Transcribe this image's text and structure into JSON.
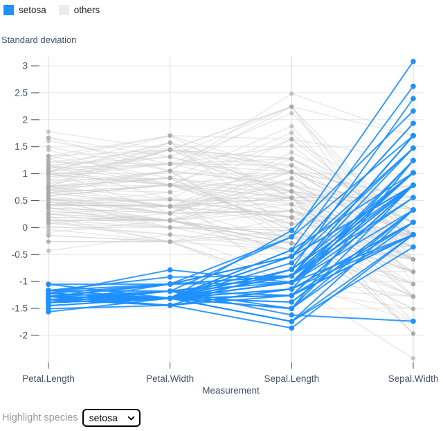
{
  "legend": {
    "items": [
      {
        "label": "setosa",
        "color": "#1e90ff"
      },
      {
        "label": "others",
        "color": "#ececec"
      }
    ]
  },
  "controls": {
    "label": "Highlight species",
    "selected": "setosa"
  },
  "chart_data": {
    "type": "line",
    "subtype": "parallel-coordinates",
    "title": "",
    "ylabel": "Standard deviation",
    "xlabel": "Measurement",
    "x_categories": [
      "Petal.Length",
      "Petal.Width",
      "Sepal.Length",
      "Sepal.Width"
    ],
    "y_ticks": [
      3,
      2.5,
      2,
      1.5,
      1,
      0.5,
      0,
      -0.5,
      -1,
      -1.5,
      -2
    ],
    "ylim": [
      -2.5,
      3.2
    ],
    "grid": true,
    "legend_position": "top-left",
    "highlight": "setosa",
    "standardized_per_column": true,
    "colors": {
      "highlight": "#1e90ff",
      "context_line": "#cccccc",
      "context_dot": "#a6a6a6",
      "grid": "#e7e7e7",
      "axis_rule": "#dadada",
      "axis_text": "#45526b"
    },
    "series": [
      {
        "name": "setosa",
        "role": "highlight",
        "rows": [
          [
            1.4,
            0.2,
            5.1,
            3.5
          ],
          [
            1.4,
            0.2,
            4.9,
            3.0
          ],
          [
            1.3,
            0.2,
            4.7,
            3.2
          ],
          [
            1.5,
            0.2,
            4.6,
            3.1
          ],
          [
            1.4,
            0.2,
            5.0,
            3.6
          ],
          [
            1.7,
            0.4,
            5.4,
            3.9
          ],
          [
            1.4,
            0.3,
            4.6,
            3.4
          ],
          [
            1.5,
            0.2,
            5.0,
            3.4
          ],
          [
            1.4,
            0.2,
            4.4,
            2.9
          ],
          [
            1.5,
            0.1,
            4.9,
            3.1
          ],
          [
            1.5,
            0.2,
            5.4,
            3.7
          ],
          [
            1.6,
            0.2,
            4.8,
            3.4
          ],
          [
            1.4,
            0.1,
            4.8,
            3.0
          ],
          [
            1.1,
            0.1,
            4.3,
            3.0
          ],
          [
            1.2,
            0.2,
            5.8,
            4.0
          ],
          [
            1.5,
            0.4,
            5.7,
            4.4
          ],
          [
            1.3,
            0.4,
            5.4,
            3.9
          ],
          [
            1.4,
            0.3,
            5.1,
            3.5
          ],
          [
            1.7,
            0.3,
            5.7,
            3.8
          ],
          [
            1.5,
            0.3,
            5.1,
            3.8
          ],
          [
            1.7,
            0.2,
            5.4,
            3.4
          ],
          [
            1.5,
            0.4,
            5.1,
            3.7
          ],
          [
            1.0,
            0.2,
            4.6,
            3.6
          ],
          [
            1.7,
            0.5,
            5.1,
            3.3
          ],
          [
            1.9,
            0.2,
            4.8,
            3.4
          ],
          [
            1.6,
            0.2,
            5.0,
            3.0
          ],
          [
            1.6,
            0.4,
            5.0,
            3.4
          ],
          [
            1.5,
            0.2,
            5.2,
            3.5
          ],
          [
            1.4,
            0.2,
            5.2,
            3.4
          ],
          [
            1.6,
            0.2,
            4.7,
            3.2
          ],
          [
            1.6,
            0.2,
            4.8,
            3.1
          ],
          [
            1.5,
            0.4,
            5.4,
            3.4
          ],
          [
            1.5,
            0.1,
            5.2,
            4.1
          ],
          [
            1.4,
            0.2,
            5.5,
            4.2
          ],
          [
            1.5,
            0.2,
            4.9,
            3.1
          ],
          [
            1.2,
            0.2,
            5.0,
            3.2
          ],
          [
            1.3,
            0.2,
            5.5,
            3.5
          ],
          [
            1.4,
            0.1,
            4.9,
            3.6
          ],
          [
            1.3,
            0.2,
            4.4,
            3.0
          ],
          [
            1.5,
            0.2,
            5.1,
            3.4
          ],
          [
            1.3,
            0.3,
            5.0,
            3.5
          ],
          [
            1.3,
            0.3,
            4.5,
            2.3
          ],
          [
            1.3,
            0.2,
            4.4,
            3.2
          ],
          [
            1.6,
            0.6,
            5.0,
            3.5
          ],
          [
            1.9,
            0.4,
            5.1,
            3.8
          ],
          [
            1.4,
            0.3,
            4.8,
            3.0
          ],
          [
            1.6,
            0.2,
            5.1,
            3.8
          ],
          [
            1.4,
            0.2,
            4.6,
            3.2
          ],
          [
            1.5,
            0.2,
            5.3,
            3.7
          ],
          [
            1.4,
            0.2,
            5.0,
            3.3
          ]
        ]
      },
      {
        "name": "others",
        "role": "context",
        "rows": [
          [
            4.7,
            1.4,
            7.0,
            3.2
          ],
          [
            4.5,
            1.5,
            6.4,
            3.2
          ],
          [
            4.9,
            1.5,
            6.9,
            3.1
          ],
          [
            4.0,
            1.3,
            5.5,
            2.3
          ],
          [
            4.6,
            1.5,
            6.5,
            2.8
          ],
          [
            4.5,
            1.3,
            5.7,
            2.8
          ],
          [
            4.7,
            1.6,
            6.3,
            3.3
          ],
          [
            3.3,
            1.0,
            4.9,
            2.4
          ],
          [
            4.6,
            1.3,
            6.6,
            2.9
          ],
          [
            3.9,
            1.4,
            5.2,
            2.7
          ],
          [
            3.5,
            1.0,
            5.0,
            2.0
          ],
          [
            4.2,
            1.5,
            5.9,
            3.0
          ],
          [
            4.0,
            1.0,
            6.0,
            2.2
          ],
          [
            4.7,
            1.4,
            6.1,
            2.9
          ],
          [
            3.6,
            1.3,
            5.6,
            2.9
          ],
          [
            4.4,
            1.4,
            6.7,
            3.1
          ],
          [
            4.5,
            1.5,
            5.6,
            3.0
          ],
          [
            4.1,
            1.0,
            5.8,
            2.7
          ],
          [
            4.5,
            1.5,
            6.2,
            2.2
          ],
          [
            3.9,
            1.1,
            5.6,
            2.5
          ],
          [
            4.8,
            1.8,
            5.9,
            3.2
          ],
          [
            4.0,
            1.3,
            6.1,
            2.8
          ],
          [
            4.9,
            1.5,
            6.3,
            2.5
          ],
          [
            4.7,
            1.2,
            6.1,
            2.8
          ],
          [
            4.3,
            1.3,
            6.4,
            2.9
          ],
          [
            4.4,
            1.4,
            6.6,
            3.0
          ],
          [
            4.8,
            1.4,
            6.8,
            2.8
          ],
          [
            5.0,
            1.7,
            6.7,
            3.0
          ],
          [
            4.5,
            1.5,
            6.0,
            2.9
          ],
          [
            3.5,
            1.0,
            5.7,
            2.6
          ],
          [
            3.8,
            1.1,
            5.5,
            2.4
          ],
          [
            3.7,
            1.0,
            5.5,
            2.4
          ],
          [
            3.9,
            1.2,
            5.8,
            2.7
          ],
          [
            5.1,
            1.6,
            6.0,
            2.7
          ],
          [
            4.5,
            1.5,
            5.4,
            3.0
          ],
          [
            4.5,
            1.6,
            6.0,
            3.4
          ],
          [
            4.7,
            1.5,
            6.7,
            3.1
          ],
          [
            4.4,
            1.3,
            6.3,
            2.3
          ],
          [
            4.1,
            1.3,
            5.6,
            3.0
          ],
          [
            4.0,
            1.3,
            5.5,
            2.5
          ],
          [
            4.4,
            1.2,
            5.5,
            2.6
          ],
          [
            4.6,
            1.4,
            6.1,
            3.0
          ],
          [
            4.0,
            1.2,
            5.8,
            2.6
          ],
          [
            3.3,
            1.0,
            5.0,
            2.3
          ],
          [
            4.2,
            1.3,
            5.6,
            2.7
          ],
          [
            4.2,
            1.2,
            5.7,
            3.0
          ],
          [
            4.2,
            1.3,
            5.7,
            2.9
          ],
          [
            4.3,
            1.3,
            6.2,
            2.9
          ],
          [
            3.0,
            1.1,
            5.1,
            2.5
          ],
          [
            4.1,
            1.3,
            5.7,
            2.8
          ],
          [
            6.0,
            2.5,
            6.3,
            3.3
          ],
          [
            5.1,
            1.9,
            5.8,
            2.7
          ],
          [
            5.9,
            2.1,
            7.1,
            3.0
          ],
          [
            5.6,
            1.8,
            6.3,
            2.9
          ],
          [
            5.8,
            2.2,
            6.5,
            3.0
          ],
          [
            6.6,
            2.1,
            7.6,
            3.0
          ],
          [
            4.5,
            1.7,
            4.9,
            2.5
          ],
          [
            6.3,
            1.8,
            7.3,
            2.9
          ],
          [
            5.8,
            1.8,
            6.7,
            2.5
          ],
          [
            6.1,
            2.5,
            7.2,
            3.6
          ],
          [
            5.1,
            2.0,
            6.5,
            3.2
          ],
          [
            5.3,
            1.9,
            6.4,
            2.7
          ],
          [
            5.5,
            2.1,
            6.8,
            3.0
          ],
          [
            5.0,
            2.0,
            5.7,
            2.5
          ],
          [
            5.1,
            2.4,
            5.8,
            2.8
          ],
          [
            5.3,
            2.3,
            6.4,
            3.2
          ],
          [
            5.5,
            1.8,
            6.5,
            3.0
          ],
          [
            6.7,
            2.2,
            7.7,
            3.8
          ],
          [
            6.9,
            2.3,
            7.7,
            2.6
          ],
          [
            5.0,
            1.5,
            6.0,
            2.2
          ],
          [
            5.7,
            2.3,
            6.9,
            3.2
          ],
          [
            4.9,
            2.0,
            5.6,
            2.8
          ],
          [
            6.7,
            2.0,
            7.7,
            2.8
          ],
          [
            4.9,
            1.8,
            6.3,
            2.7
          ],
          [
            5.7,
            2.1,
            6.7,
            3.3
          ],
          [
            6.0,
            1.8,
            7.2,
            3.2
          ],
          [
            4.8,
            1.8,
            6.2,
            2.8
          ],
          [
            4.9,
            1.8,
            6.1,
            3.0
          ],
          [
            5.6,
            2.1,
            6.4,
            2.8
          ],
          [
            5.8,
            1.6,
            7.2,
            3.0
          ],
          [
            6.1,
            1.9,
            7.4,
            2.8
          ],
          [
            6.4,
            2.0,
            7.9,
            3.8
          ],
          [
            5.6,
            2.2,
            6.4,
            2.8
          ],
          [
            5.1,
            1.5,
            6.3,
            2.8
          ],
          [
            5.6,
            1.4,
            6.1,
            2.6
          ],
          [
            6.1,
            2.3,
            7.7,
            3.0
          ],
          [
            5.6,
            2.4,
            6.3,
            3.4
          ],
          [
            5.5,
            1.8,
            6.4,
            3.1
          ],
          [
            4.8,
            1.8,
            6.0,
            3.0
          ],
          [
            5.4,
            2.1,
            6.9,
            3.1
          ],
          [
            5.6,
            2.4,
            6.7,
            3.1
          ],
          [
            5.1,
            2.3,
            6.9,
            3.1
          ],
          [
            5.1,
            1.9,
            5.8,
            2.7
          ],
          [
            5.9,
            2.3,
            6.8,
            3.2
          ],
          [
            5.7,
            2.5,
            6.7,
            3.3
          ],
          [
            5.2,
            2.3,
            6.7,
            3.0
          ],
          [
            5.0,
            1.9,
            6.3,
            2.5
          ],
          [
            5.2,
            2.0,
            6.5,
            3.0
          ],
          [
            5.4,
            2.3,
            6.2,
            3.4
          ],
          [
            5.1,
            1.8,
            5.9,
            3.0
          ]
        ]
      }
    ]
  }
}
